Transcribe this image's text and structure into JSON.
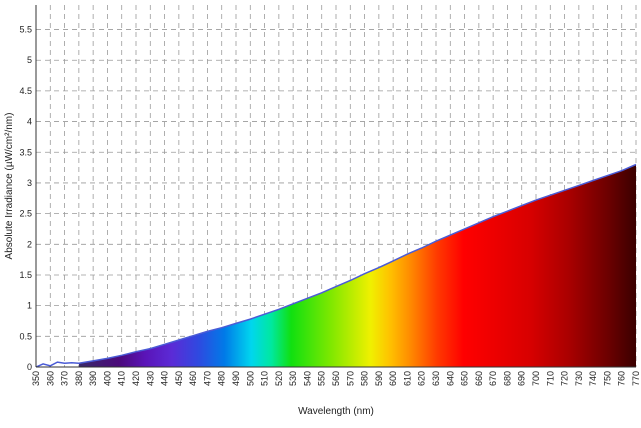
{
  "chart_data": {
    "type": "area",
    "xlabel": "Wavelength (nm)",
    "ylabel": "Absolute Irradiance (µW/cm²/nm)",
    "xlim": [
      350,
      770
    ],
    "ylim": [
      0,
      5.9
    ],
    "xticks": [
      350,
      360,
      370,
      380,
      390,
      400,
      410,
      420,
      430,
      440,
      450,
      460,
      470,
      480,
      490,
      500,
      510,
      520,
      530,
      540,
      550,
      560,
      570,
      580,
      590,
      600,
      610,
      620,
      630,
      640,
      650,
      660,
      670,
      680,
      690,
      700,
      710,
      720,
      730,
      740,
      750,
      760,
      770
    ],
    "yticks": [
      0,
      0.5,
      1,
      1.5,
      2,
      2.5,
      3,
      3.5,
      4,
      4.5,
      5,
      5.5
    ],
    "grid": true,
    "series": [
      {
        "line_color": "#4a5bd6",
        "x": [
          350,
          355,
          360,
          365,
          370,
          375,
          380,
          390,
          400,
          410,
          420,
          430,
          440,
          450,
          460,
          470,
          480,
          490,
          500,
          510,
          520,
          530,
          540,
          550,
          560,
          570,
          580,
          590,
          600,
          610,
          620,
          630,
          640,
          650,
          660,
          670,
          680,
          690,
          700,
          710,
          720,
          730,
          740,
          750,
          760,
          770
        ],
        "values": [
          0,
          0.05,
          0.02,
          0.08,
          0.06,
          0.07,
          0.06,
          0.1,
          0.14,
          0.19,
          0.25,
          0.3,
          0.37,
          0.44,
          0.51,
          0.58,
          0.64,
          0.71,
          0.78,
          0.86,
          0.94,
          1.03,
          1.12,
          1.21,
          1.31,
          1.41,
          1.52,
          1.62,
          1.73,
          1.84,
          1.94,
          2.05,
          2.15,
          2.25,
          2.35,
          2.45,
          2.54,
          2.63,
          2.72,
          2.8,
          2.88,
          2.96,
          3.04,
          3.12,
          3.2,
          3.3
        ]
      }
    ]
  }
}
